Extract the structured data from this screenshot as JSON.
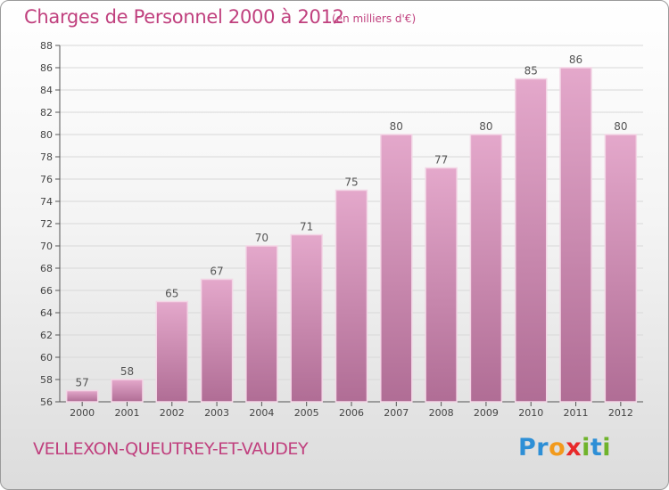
{
  "header": {
    "title": "Charges de Personnel 2000 à 2012",
    "subtitle": "(en milliers d'€)"
  },
  "footer": {
    "place": "VELLEXON-QUEUTREY-ET-VAUDEY",
    "logo": {
      "letters": [
        "P",
        "r",
        "o",
        "x",
        "i",
        "t",
        "i"
      ],
      "colors": [
        "#2e8fd6",
        "#2e8fd6",
        "#f29a1c",
        "#e8292a",
        "#6fb32b",
        "#2e8fd6",
        "#6fb32b"
      ]
    }
  },
  "colors": {
    "accent": "#c0407e",
    "bar_top": "#e4a8cb",
    "bar_bottom": "#b06d95",
    "bar_edge": "#f3d6e6",
    "grid": "#d8d8d8"
  },
  "chart_data": {
    "type": "bar",
    "title": "Charges de Personnel 2000 à 2012",
    "subtitle": "(en milliers d'€)",
    "categories": [
      "2000",
      "2001",
      "2002",
      "2003",
      "2004",
      "2005",
      "2006",
      "2007",
      "2008",
      "2009",
      "2010",
      "2011",
      "2012"
    ],
    "values": [
      57,
      58,
      65,
      67,
      70,
      71,
      75,
      80,
      77,
      80,
      85,
      86,
      80
    ],
    "ylim": [
      56,
      88
    ],
    "yticks": [
      56,
      58,
      60,
      62,
      64,
      66,
      68,
      70,
      72,
      74,
      76,
      78,
      80,
      82,
      84,
      86,
      88
    ],
    "grid": true,
    "data_labels": true
  }
}
